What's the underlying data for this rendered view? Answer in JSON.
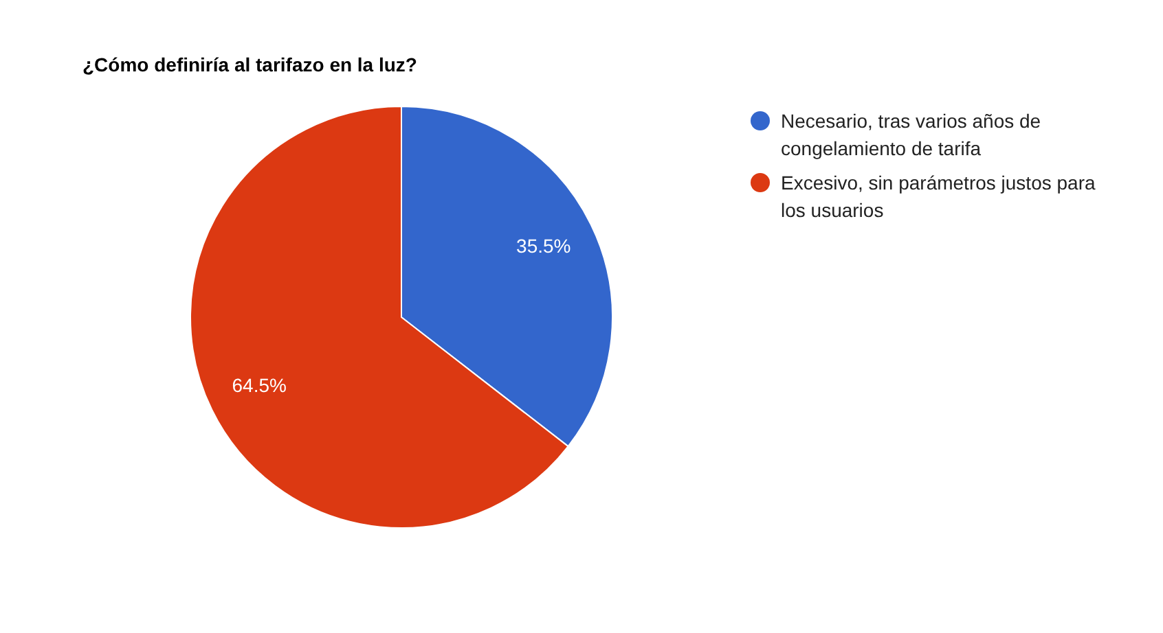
{
  "chart_data": {
    "type": "pie",
    "title": "¿Cómo definiría al tarifazo en la luz?",
    "categories": [
      "Necesario, tras varios años de congelamiento de tarifa",
      "Excesivo, sin parámetros justos para los usuarios"
    ],
    "values": [
      35.5,
      64.5
    ],
    "colors": [
      "#3366cc",
      "#dc3912"
    ],
    "value_labels": [
      "35.5%",
      "64.5%"
    ],
    "legend": "right"
  }
}
